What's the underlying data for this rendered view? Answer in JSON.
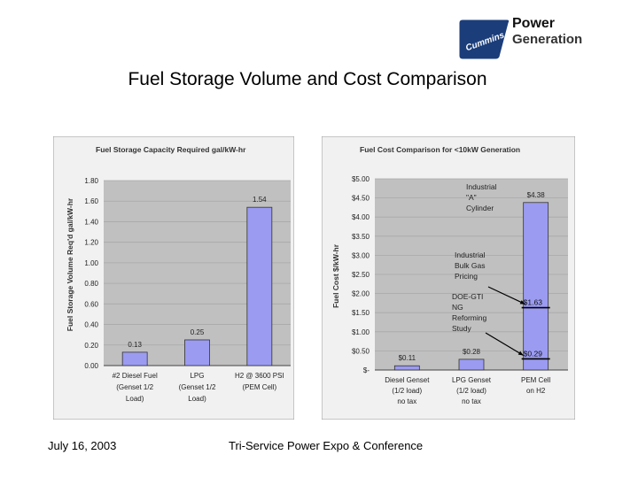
{
  "slide": {
    "title": "Fuel Storage Volume and Cost Comparison",
    "date": "July 16, 2003",
    "event": "Tri-Service Power Expo & Conference"
  },
  "logo": {
    "line1": "Power",
    "line2": "Generation",
    "emblem_text": "Cummins"
  },
  "colors": {
    "bar": "#9b9bf2",
    "plot_bg": "#c0c0c0",
    "panel_bg": "#f1f1f1",
    "grid": "#a8a8a8",
    "title_text": "#333333"
  },
  "chart_data": [
    {
      "type": "bar",
      "title": "Fuel Storage Capacity Required gal/kW-hr",
      "xlabel": "",
      "ylabel": "Fuel Storage Volume Req'd gal/kW-hr",
      "ylim": [
        0,
        1.8
      ],
      "yticks": [
        "0.00",
        "0.20",
        "0.40",
        "0.60",
        "0.80",
        "1.00",
        "1.20",
        "1.40",
        "1.60",
        "1.80"
      ],
      "categories": [
        [
          "#2 Diesel Fuel",
          "(Genset 1/2",
          "Load)"
        ],
        [
          "LPG",
          "(Genset 1/2",
          "Load)"
        ],
        [
          "H2 @ 3600 PSI",
          "(PEM Cell)"
        ]
      ],
      "values": [
        0.13,
        0.25,
        1.54
      ],
      "labels": [
        "0.13",
        "0.25",
        "1.54"
      ]
    },
    {
      "type": "bar",
      "title": "Fuel Cost Comparison for <10kW Generation",
      "xlabel": "",
      "ylabel": "Fuel Cost $/kW-hr",
      "ylim": [
        0,
        5
      ],
      "yticks": [
        "$-",
        "$0.50",
        "$1.00",
        "$1.50",
        "$2.00",
        "$2.50",
        "$3.00",
        "$3.50",
        "$4.00",
        "$4.50",
        "$5.00"
      ],
      "categories": [
        [
          "Diesel Genset",
          "(1/2 load)",
          "no tax"
        ],
        [
          "LPG Genset",
          "(1/2 load)",
          "no tax"
        ],
        [
          "PEM Cell",
          "on H2"
        ]
      ],
      "values": [
        0.11,
        0.28,
        4.38
      ],
      "labels": [
        "$0.11",
        "$0.28",
        "$4.38"
      ],
      "reference_lines": [
        {
          "value": 1.63,
          "label": "$1.63"
        },
        {
          "value": 0.29,
          "label": "$0.29"
        }
      ],
      "annotations": [
        {
          "lines": [
            "Industrial",
            "\"A\"",
            "Cylinder"
          ]
        },
        {
          "lines": [
            "Industrial",
            "Bulk Gas",
            "Pricing"
          ]
        },
        {
          "lines": [
            "DOE-GTI",
            "NG",
            "Reforming",
            "Study"
          ]
        }
      ]
    }
  ]
}
